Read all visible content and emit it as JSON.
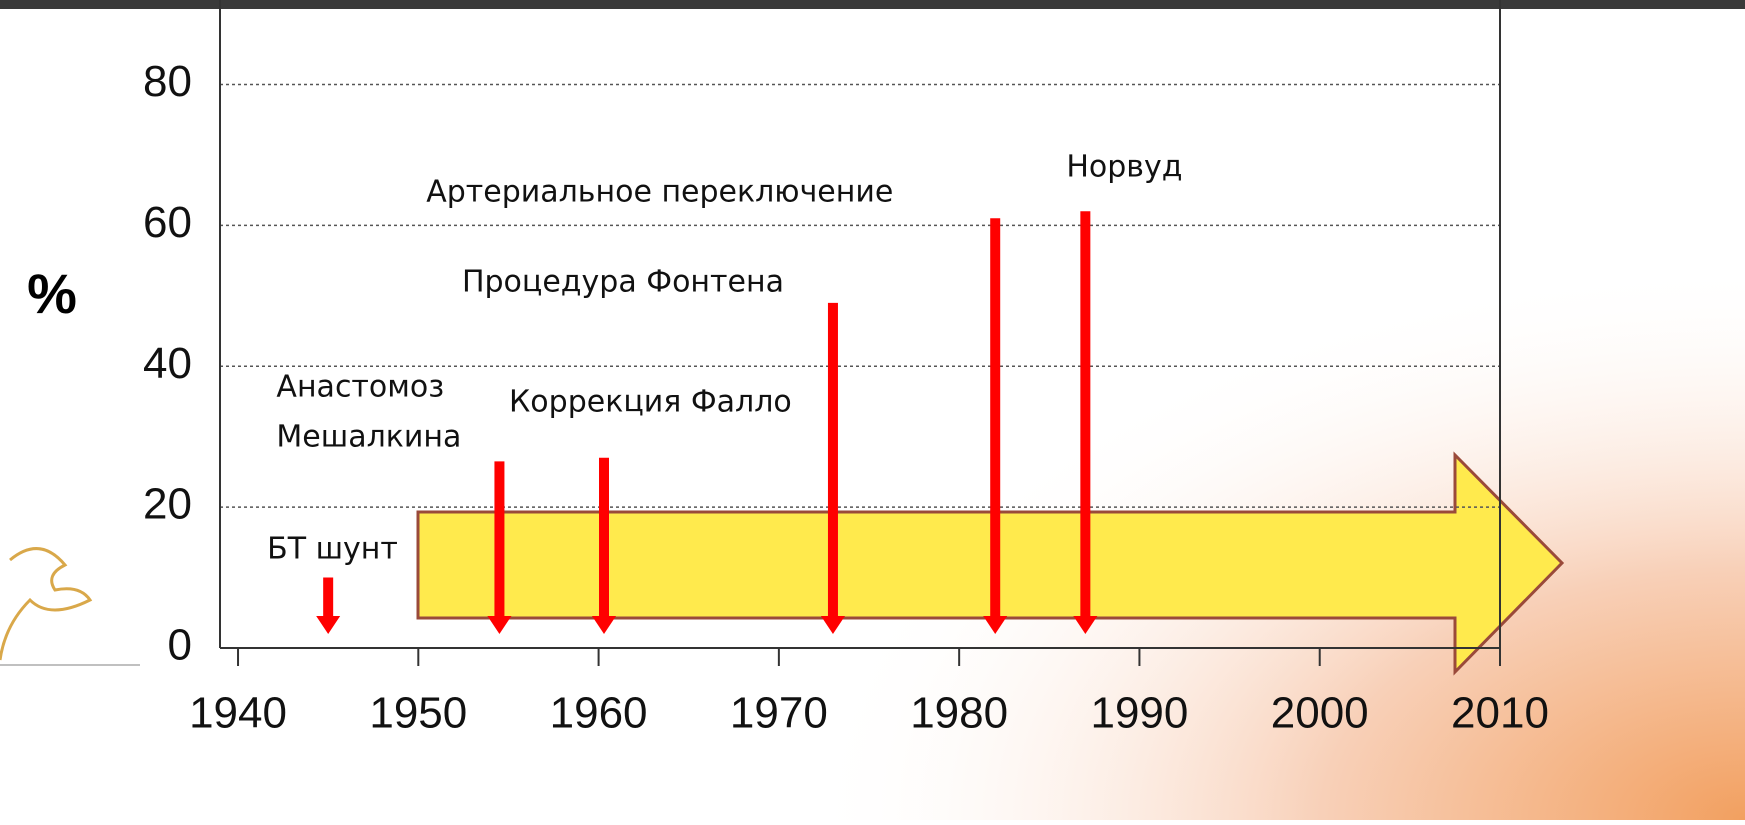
{
  "chart_data": {
    "type": "timeline-arrows",
    "ylabel": "%",
    "xlim": [
      1939,
      2010
    ],
    "xticks": [
      1940,
      1950,
      1960,
      1970,
      1980,
      1990,
      2000,
      2010
    ],
    "ylim": [
      0,
      90
    ],
    "yticks": [
      0,
      20,
      40,
      60,
      80
    ],
    "grid": true,
    "color": "#ff0000",
    "events": [
      {
        "lines": [
          "БТ шунт"
        ],
        "x": 1945,
        "value": 10
      },
      {
        "lines": [
          "Анастомоз",
          "Мешалкина"
        ],
        "x": 1954.5,
        "value": 26.5
      },
      {
        "lines": [
          "Коррекция Фалло"
        ],
        "x": 1960.3,
        "value": 27
      },
      {
        "lines": [
          "Процедура Фонтена"
        ],
        "x": 1973,
        "value": 49
      },
      {
        "lines": [
          "Артериальное переключение"
        ],
        "x": 1982,
        "value": 61
      },
      {
        "lines": [
          "Норвуд"
        ],
        "x": 1987,
        "value": 62
      }
    ]
  }
}
